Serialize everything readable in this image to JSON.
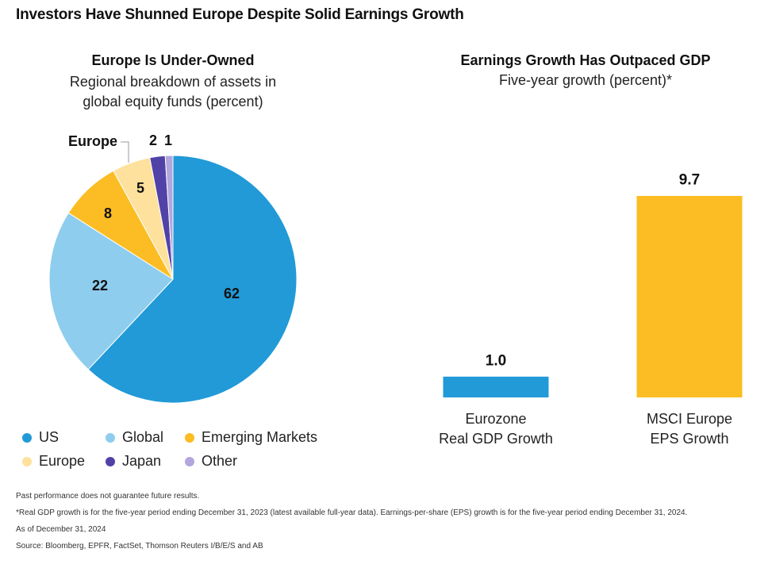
{
  "title": "Investors Have Shunned Europe Despite Solid Earnings Growth",
  "chart_data": [
    {
      "type": "pie",
      "title": "Europe Is Under-Owned",
      "subtitle_lines": [
        "Regional breakdown of assets in",
        "global equity funds (percent)"
      ],
      "slices": [
        {
          "name": "US",
          "value": 62,
          "label": "62",
          "color": "#219ad7"
        },
        {
          "name": "Global",
          "value": 22,
          "label": "22",
          "color": "#8ecdee"
        },
        {
          "name": "Emerging Markets",
          "value": 8,
          "label": "8",
          "color": "#fbbd23"
        },
        {
          "name": "Europe",
          "value": 5,
          "label": "5",
          "color": "#fde19c"
        },
        {
          "name": "Japan",
          "value": 2,
          "label": "2",
          "color": "#5142a7"
        },
        {
          "name": "Other",
          "value": 1,
          "label": "1",
          "color": "#b3a6dd"
        }
      ],
      "callout": "Europe",
      "legend_position": "bottom"
    },
    {
      "type": "bar",
      "title": "Earnings Growth Has Outpaced GDP",
      "subtitle": "Five-year growth (percent)*",
      "categories": [
        {
          "lines": [
            "Eurozone",
            "Real GDP Growth"
          ]
        },
        {
          "lines": [
            "MSCI Europe",
            "EPS Growth"
          ]
        }
      ],
      "values": [
        1.0,
        9.7
      ],
      "value_labels": [
        "1.0",
        "9.7"
      ],
      "colors": [
        "#219ad7",
        "#fbbd23"
      ],
      "ylim": [
        0,
        9.7
      ],
      "grid": false
    }
  ],
  "footnotes": [
    "Past performance does not guarantee future results.",
    "*Real GDP growth is for the five-year period ending December 31, 2023 (latest available full-year data). Earnings-per-share (EPS) growth is for the five-year period ending December 31, 2024.",
    "As of December 31, 2024",
    "Source: Bloomberg, EPFR, FactSet, Thomson Reuters I/B/E/S and AB"
  ]
}
